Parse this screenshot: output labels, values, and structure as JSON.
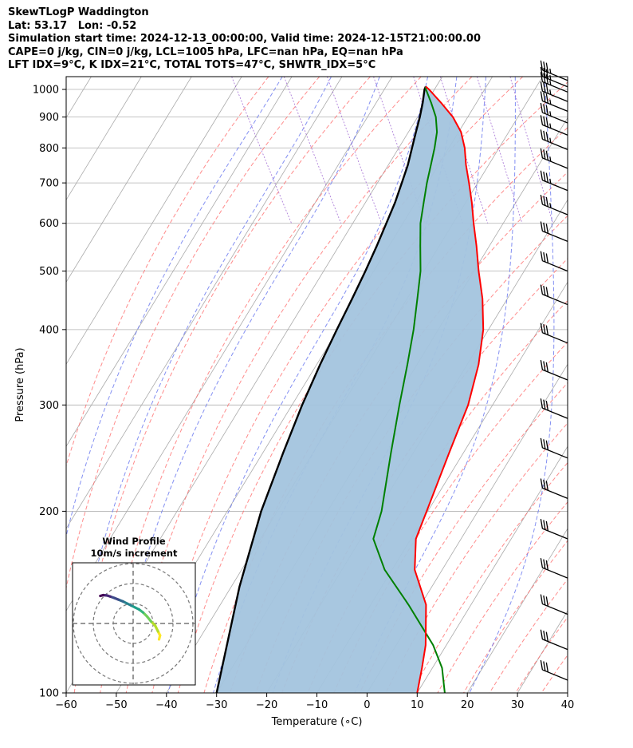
{
  "header": {
    "line1": "SkewTLogP Waddington",
    "line2": "Lat: 53.17   Lon: -0.52",
    "line3": "Simulation start time: 2024-12-13_00:00:00, Valid time: 2024-12-15T21:00:00.00",
    "line4": "CAPE=0 j/kg, CIN=0 j/kg, LCL=1005 hPa, LFC=nan hPa, EQ=nan hPa",
    "line5": "LFT IDX=9°C, K IDX=21°C, TOTAL TOTS=47°C, SHWTR_IDX=5°C"
  },
  "chart_data": [
    {
      "type": "skew-t",
      "xlabel": "Temperature (∘C)",
      "ylabel": "Pressure (hPa)",
      "xlim": [
        -60,
        40
      ],
      "ylim": [
        1050,
        100
      ],
      "x_ticks": [
        -60,
        -50,
        -40,
        -30,
        -20,
        -10,
        0,
        10,
        20,
        30,
        40
      ],
      "x_tick_labels": [
        "−60",
        "−50",
        "−40",
        "−30",
        "−20",
        "−10",
        "0",
        "10",
        "20",
        "30",
        "40"
      ],
      "y_ticks": [
        100,
        200,
        300,
        400,
        500,
        600,
        700,
        800,
        900,
        1000
      ],
      "y_tick_labels": [
        "100",
        "200",
        "300",
        "400",
        "500",
        "600",
        "700",
        "800",
        "900",
        "1000"
      ],
      "y_scale": "log",
      "grid": true,
      "colors": {
        "temperature": "#ff0000",
        "dewpoint": "#008000",
        "parcel": "#000000",
        "shade": "#a3c4de",
        "dry_adiabat": "#ff6666",
        "moist_adiabat": "#6f7cf0",
        "mixing_ratio": "#9a5fcf",
        "isotherm": "#aaaaaa"
      },
      "series": [
        {
          "points": [
            [
              1011,
              10.5
            ],
            [
              1000,
              10.8
            ],
            [
              950,
              11.6
            ],
            [
              900,
              12.2
            ],
            [
              850,
              12.0
            ],
            [
              800,
              10.8
            ],
            [
              750,
              9.0
            ],
            [
              700,
              7.4
            ],
            [
              650,
              5.6
            ],
            [
              600,
              3.4
            ],
            [
              550,
              1.2
            ],
            [
              500,
              -1.4
            ],
            [
              450,
              -4.0
            ],
            [
              400,
              -7.6
            ],
            [
              350,
              -12.8
            ],
            [
              300,
              -19.8
            ],
            [
              250,
              -29.4
            ],
            [
              200,
              -41.0
            ],
            [
              180,
              -46.5
            ],
            [
              160,
              -50.5
            ],
            [
              140,
              -52.5
            ],
            [
              120,
              -57.5
            ],
            [
              110,
              -61.0
            ],
            [
              100,
              -65.0
            ]
          ]
        },
        {
          "points": [
            [
              1011,
              10.5
            ],
            [
              1000,
              10.2
            ],
            [
              950,
              9.6
            ],
            [
              900,
              8.8
            ],
            [
              850,
              7.2
            ],
            [
              800,
              4.8
            ],
            [
              750,
              2.0
            ],
            [
              700,
              -1.0
            ],
            [
              650,
              -4.0
            ],
            [
              600,
              -7.2
            ],
            [
              550,
              -10.0
            ],
            [
              500,
              -13.0
            ],
            [
              450,
              -17.0
            ],
            [
              400,
              -21.5
            ],
            [
              350,
              -27.0
            ],
            [
              300,
              -33.5
            ],
            [
              250,
              -41.0
            ],
            [
              200,
              -50.0
            ],
            [
              180,
              -55.0
            ],
            [
              160,
              -56.5
            ],
            [
              140,
              -56.0
            ],
            [
              120,
              -56.0
            ],
            [
              110,
              -57.0
            ],
            [
              100,
              -59.5
            ]
          ]
        },
        {
          "points": [
            [
              1011,
              10.5
            ],
            [
              1000,
              9.9
            ],
            [
              950,
              7.9
            ],
            [
              900,
              5.6
            ],
            [
              850,
              3.0
            ],
            [
              800,
              0.3
            ],
            [
              750,
              -2.6
            ],
            [
              700,
              -6.0
            ],
            [
              650,
              -9.7
            ],
            [
              600,
              -14.0
            ],
            [
              550,
              -18.7
            ],
            [
              500,
              -24.0
            ],
            [
              450,
              -30.0
            ],
            [
              400,
              -36.8
            ],
            [
              350,
              -44.4
            ],
            [
              300,
              -52.9
            ],
            [
              250,
              -62.5
            ],
            [
              200,
              -74.0
            ],
            [
              150,
              -87.5
            ],
            [
              100,
              -105.0
            ]
          ]
        }
      ],
      "wind_barbs": [
        {
          "p": 1035,
          "speed_kt": 25,
          "dir": 240
        },
        {
          "p": 1010,
          "speed_kt": 25,
          "dir": 245
        },
        {
          "p": 990,
          "speed_kt": 25,
          "dir": 250
        },
        {
          "p": 955,
          "speed_kt": 25,
          "dir": 255
        },
        {
          "p": 920,
          "speed_kt": 25,
          "dir": 260
        },
        {
          "p": 880,
          "speed_kt": 25,
          "dir": 265
        },
        {
          "p": 840,
          "speed_kt": 25,
          "dir": 270
        },
        {
          "p": 795,
          "speed_kt": 25,
          "dir": 275
        },
        {
          "p": 740,
          "speed_kt": 25,
          "dir": 280
        },
        {
          "p": 680,
          "speed_kt": 25,
          "dir": 285
        },
        {
          "p": 620,
          "speed_kt": 25,
          "dir": 290
        },
        {
          "p": 560,
          "speed_kt": 30,
          "dir": 290
        },
        {
          "p": 500,
          "speed_kt": 30,
          "dir": 290
        },
        {
          "p": 440,
          "speed_kt": 30,
          "dir": 295
        },
        {
          "p": 380,
          "speed_kt": 30,
          "dir": 295
        },
        {
          "p": 330,
          "speed_kt": 30,
          "dir": 295
        },
        {
          "p": 285,
          "speed_kt": 30,
          "dir": 300
        },
        {
          "p": 245,
          "speed_kt": 30,
          "dir": 300
        },
        {
          "p": 210,
          "speed_kt": 30,
          "dir": 300
        },
        {
          "p": 180,
          "speed_kt": 30,
          "dir": 300
        },
        {
          "p": 155,
          "speed_kt": 30,
          "dir": 300
        },
        {
          "p": 135,
          "speed_kt": 30,
          "dir": 300
        },
        {
          "p": 118,
          "speed_kt": 30,
          "dir": 300
        },
        {
          "p": 105,
          "speed_kt": 30,
          "dir": 300
        }
      ]
    },
    {
      "type": "hodograph",
      "title": "Wind Profile",
      "subtitle": "10m/s increment",
      "rings_ms": [
        10,
        20,
        30
      ],
      "colormap": "viridis",
      "points_uv": [
        [
          13.0,
          -8.0
        ],
        [
          13.5,
          -6.0
        ],
        [
          12.5,
          -4.0
        ],
        [
          11.0,
          -1.0
        ],
        [
          9.0,
          1.0
        ],
        [
          7.0,
          3.5
        ],
        [
          5.0,
          5.5
        ],
        [
          3.0,
          7.0
        ],
        [
          1.0,
          8.0
        ],
        [
          -1.0,
          9.0
        ],
        [
          -3.0,
          10.0
        ],
        [
          -5.0,
          11.0
        ],
        [
          -7.5,
          12.0
        ],
        [
          -9.5,
          12.8
        ],
        [
          -11.5,
          13.5
        ],
        [
          -13.0,
          14.0
        ],
        [
          -15.0,
          14.2
        ],
        [
          -16.5,
          13.8
        ]
      ]
    }
  ]
}
